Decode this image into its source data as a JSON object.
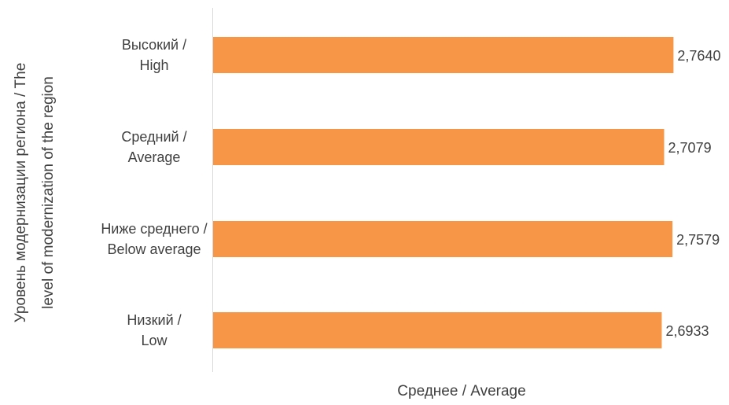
{
  "chart_data": {
    "type": "bar",
    "orientation": "horizontal",
    "categories": [
      [
        "Высокий /",
        "High"
      ],
      [
        "Средний /",
        "Average"
      ],
      [
        "Ниже среднего /",
        "Below average"
      ],
      [
        "Низкий /",
        "Low"
      ]
    ],
    "values": [
      2.764,
      2.7079,
      2.7579,
      2.6933
    ],
    "data_labels": [
      "2,7640",
      "2,7079",
      "2,7579",
      "2,6933"
    ],
    "xlabel": "Среднее / Average",
    "ylabel": [
      "Уровень модернизации региона / The",
      "level of modernization of the region"
    ],
    "bar_color": "#F79646",
    "grid": false,
    "legend": "none"
  }
}
